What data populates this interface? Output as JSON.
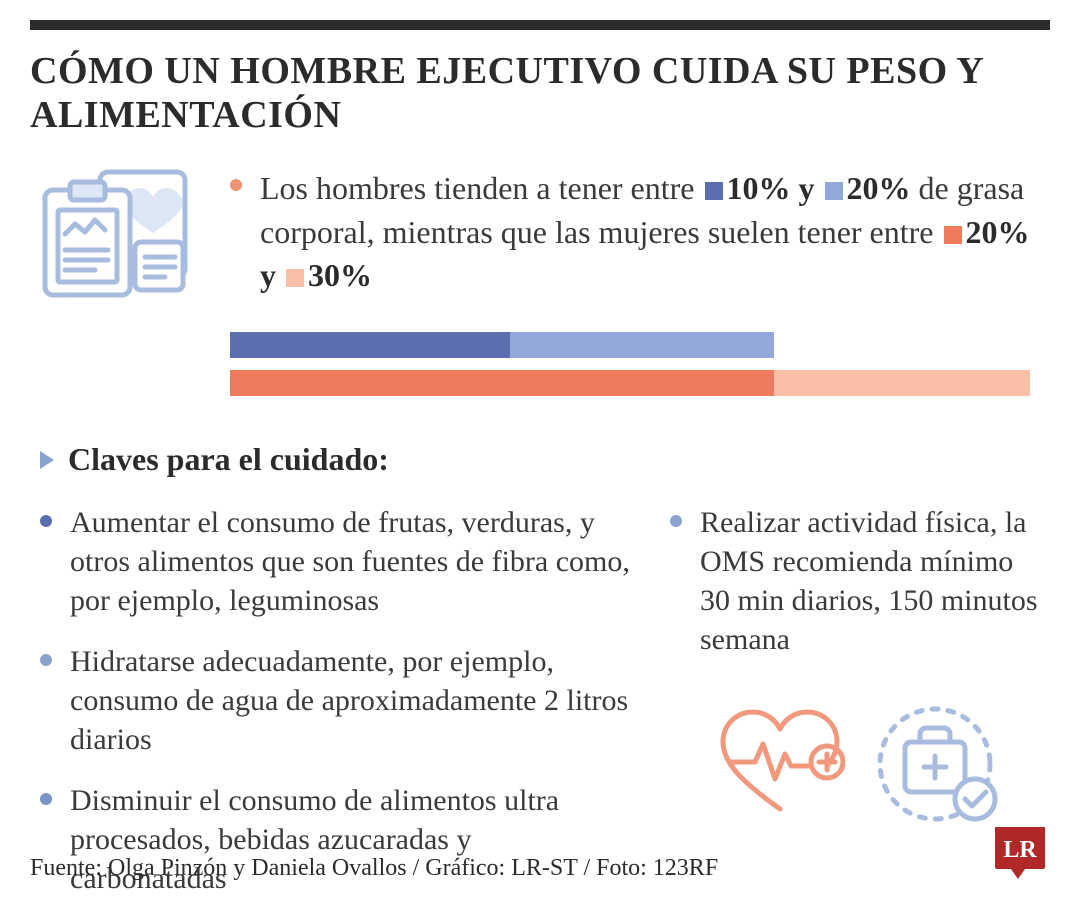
{
  "colors": {
    "dark_blue": "#5b6fb0",
    "light_blue": "#92a8d8",
    "orange": "#ee7b5f",
    "light_orange": "#f9bfa7",
    "bullet_orange": "#ee9472",
    "bullet_blue_dark": "#5b6fb0",
    "bullet_blue_light": "#8aa3cc",
    "bullet_blue_mid": "#7a94c8",
    "text": "#2b2b2b",
    "logo_red": "#b02828",
    "icon_blue": "#a8bce0",
    "icon_orange": "#f2997d"
  },
  "title": "CÓMO UN HOMBRE EJECUTIVO CUIDA SU PESO Y ALIMENTACIÓN",
  "intro": {
    "pre1": "Los hombres tienden a tener entre ",
    "val1": "10% y",
    "val2": "20%",
    "mid": " de grasa corporal, mientras que las mujeres suelen tener entre ",
    "val3": "20% y ",
    "val4": "30%"
  },
  "bars": {
    "row1": [
      {
        "color": "#5b6fb0",
        "width": 35
      },
      {
        "color": "#92a8d8",
        "width": 33
      }
    ],
    "row2": [
      {
        "color": "#ee7b5f",
        "width": 68
      },
      {
        "color": "#f9bfa7",
        "width": 32
      }
    ]
  },
  "subhead": "Claves para el cuidado:",
  "tips_left": [
    {
      "bullet": "#5b6fb0",
      "text": "Aumentar el consumo de frutas, verduras, y otros alimentos que son fuentes de fibra como, por ejemplo, leguminosas"
    },
    {
      "bullet": "#8aa3cc",
      "text": "Hidratarse adecuadamente, por ejemplo, consumo de agua de aproximadamente 2 litros diarios"
    },
    {
      "bullet": "#7a94c8",
      "text": "Disminuir el consumo de alimentos ultra procesados, bebidas azucaradas y carbonatadas"
    }
  ],
  "tips_right": [
    {
      "bullet": "#8aa3cc",
      "text": "Realizar actividad física, la OMS recomienda mínimo 30 min diarios, 150 minutos semana"
    }
  ],
  "source": "Fuente: Olga Pinzón y Daniela Ovallos / Gráfico: LR-ST / Foto: 123RF",
  "logo_text": "LR"
}
